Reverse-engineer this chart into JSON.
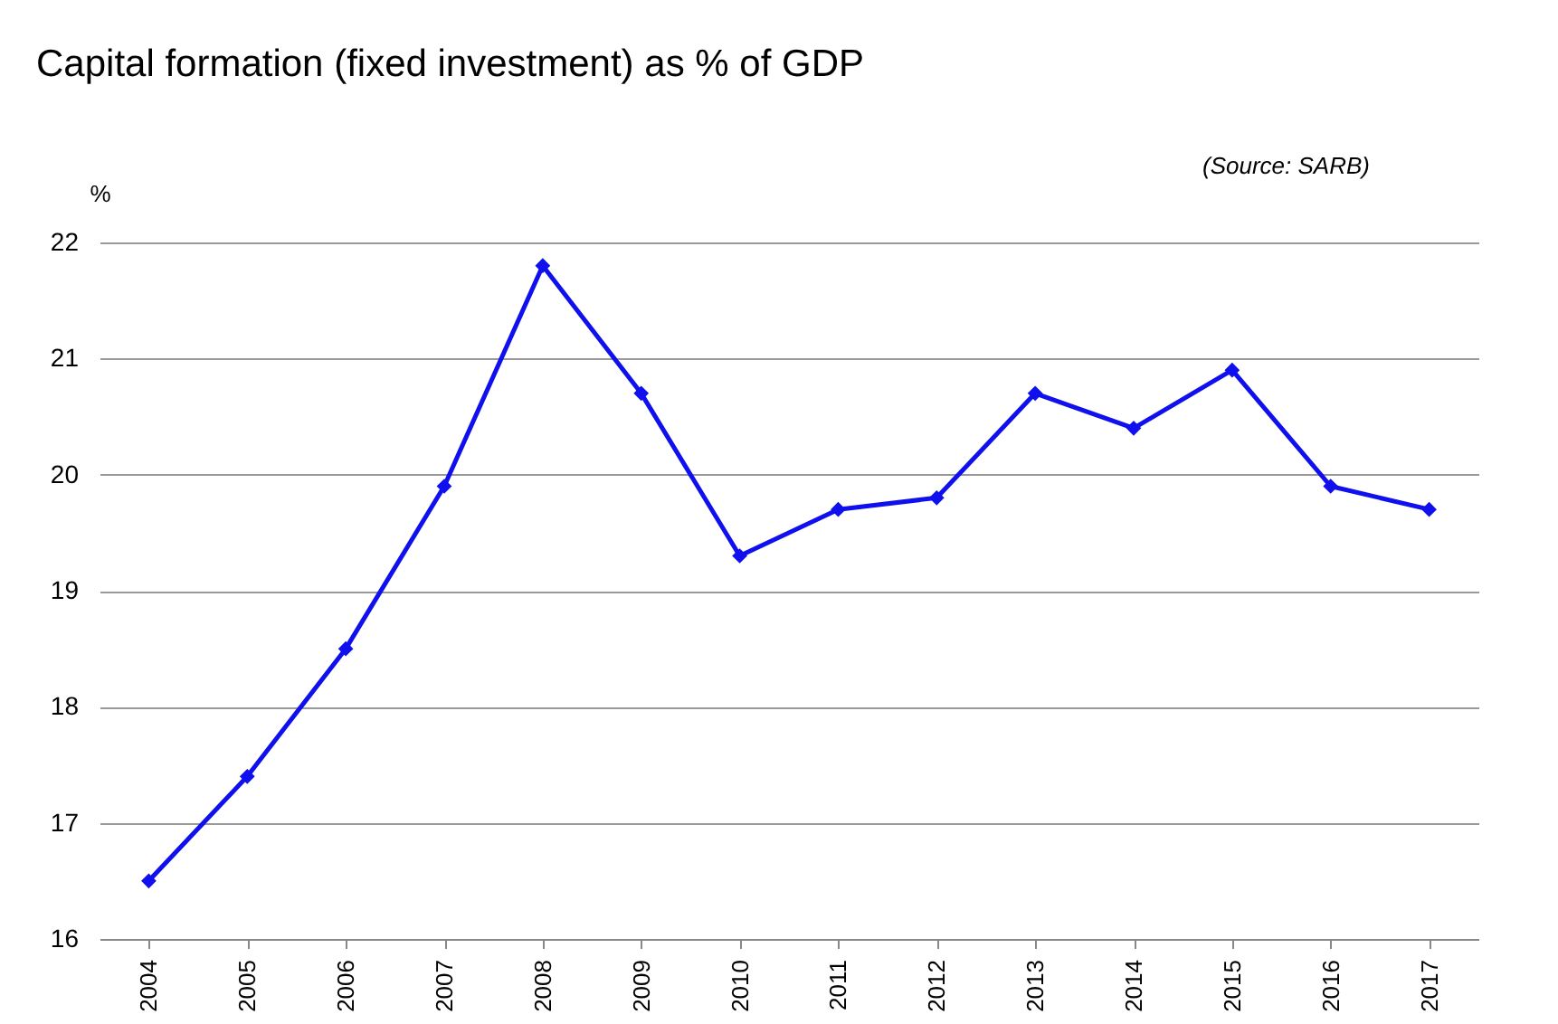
{
  "chart_data": {
    "type": "line",
    "title": "Capital formation (fixed investment) as % of GDP",
    "ylabel": "%",
    "annotations": [
      "(Source: SARB)"
    ],
    "categories": [
      "2004",
      "2005",
      "2006",
      "2007",
      "2008",
      "2009",
      "2010",
      "2011",
      "2012",
      "2013",
      "2014",
      "2015",
      "2016",
      "2017"
    ],
    "series": [
      {
        "color": "#1010ee",
        "values": [
          16.5,
          17.4,
          18.5,
          19.9,
          21.8,
          20.7,
          19.3,
          19.7,
          19.8,
          20.7,
          20.4,
          20.9,
          19.9,
          19.7
        ]
      }
    ],
    "ylim": [
      16,
      22
    ],
    "yticks": [
      16,
      17,
      18,
      19,
      20,
      21,
      22
    ],
    "grid": "y",
    "legend": false,
    "marker": "diamond",
    "line_style": "solid"
  }
}
